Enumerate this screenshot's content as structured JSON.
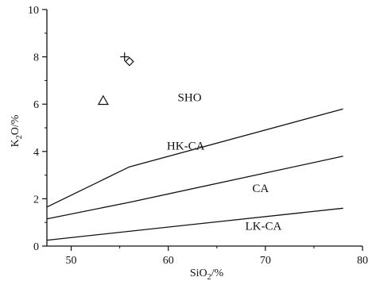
{
  "chart_data": {
    "type": "scatter",
    "title": "",
    "xlabel": "SiO",
    "xlabel_sub": "2",
    "xlabel_suffix": "/%",
    "ylabel": "K",
    "ylabel_sub": "2",
    "ylabel_suffix": "O/%",
    "xlim": [
      47.5,
      80
    ],
    "ylim": [
      0,
      10
    ],
    "x_ticks": [
      "50",
      "60",
      "70",
      "80"
    ],
    "y_ticks": [
      "0",
      "2",
      "4",
      "6",
      "8",
      "10"
    ],
    "grid": false,
    "boundary_lines": [
      {
        "points": [
          [
            47.5,
            0.25
          ],
          [
            78,
            1.6
          ]
        ]
      },
      {
        "points": [
          [
            47.5,
            1.15
          ],
          [
            56,
            1.85
          ],
          [
            78,
            3.8
          ]
        ]
      },
      {
        "points": [
          [
            47.5,
            1.65
          ],
          [
            56,
            3.35
          ],
          [
            78,
            5.8
          ]
        ]
      }
    ],
    "region_labels": [
      {
        "text": "SHO",
        "x": 62.2,
        "y": 6.3
      },
      {
        "text": "HK-CA",
        "x": 61.8,
        "y": 4.25
      },
      {
        "text": "CA",
        "x": 69.5,
        "y": 2.45
      },
      {
        "text": "LK-CA",
        "x": 69.8,
        "y": 0.85
      }
    ],
    "points": [
      {
        "x": 55.5,
        "y": 8.0,
        "marker": "plus"
      },
      {
        "x": 56.0,
        "y": 7.8,
        "marker": "diamond"
      },
      {
        "x": 53.3,
        "y": 6.15,
        "marker": "triangle"
      }
    ]
  }
}
